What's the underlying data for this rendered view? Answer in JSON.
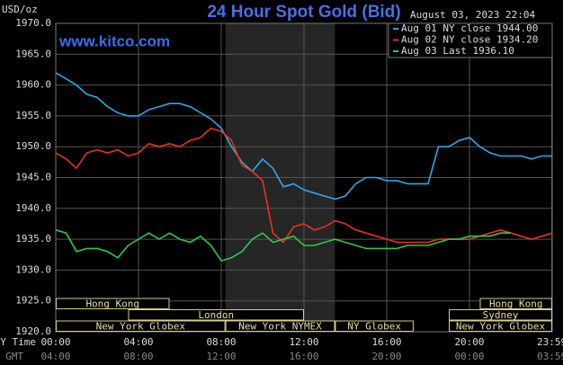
{
  "chart_data": {
    "type": "line",
    "title": "24 Hour Spot Gold (Bid)",
    "y_label": "USD/oz",
    "timestamp": "August 03, 2023 22:04",
    "site": "www.kitco.com",
    "x_label": "NY Time",
    "x2_label": "GMT",
    "xlim": [
      0,
      24
    ],
    "ylim": [
      1920,
      1970
    ],
    "yticks": [
      {
        "value": 1920,
        "label": "1920.0"
      },
      {
        "value": 1925,
        "label": "1925.0"
      },
      {
        "value": 1930,
        "label": "1930.0"
      },
      {
        "value": 1935,
        "label": "1935.0"
      },
      {
        "value": 1940,
        "label": "1940.0"
      },
      {
        "value": 1945,
        "label": "1945.0"
      },
      {
        "value": 1950,
        "label": "1950.0"
      },
      {
        "value": 1955,
        "label": "1955.0"
      },
      {
        "value": 1960,
        "label": "1960.0"
      },
      {
        "value": 1965,
        "label": "1965.0"
      },
      {
        "value": 1970,
        "label": "1970.0"
      }
    ],
    "xticks": [
      {
        "value": 0,
        "label": "00:00"
      },
      {
        "value": 4,
        "label": "04:00"
      },
      {
        "value": 8,
        "label": "08:00"
      },
      {
        "value": 12,
        "label": "12:00"
      },
      {
        "value": 16,
        "label": "16:00"
      },
      {
        "value": 20,
        "label": "20:00"
      },
      {
        "value": 23.98,
        "label": "23:59"
      }
    ],
    "gmt_labels": [
      "04:00",
      "08:00",
      "12:00",
      "16:00",
      "20:00",
      "00:00",
      "03:59"
    ],
    "grid": true,
    "sessions": [
      {
        "label": "Hong Kong",
        "start": 0,
        "end": 5.5
      },
      {
        "label": "Hong Kong",
        "start": 20.5,
        "end": 24
      },
      {
        "label": "London",
        "start": 3.5,
        "end": 12
      },
      {
        "label": "Sydney",
        "start": 19,
        "end": 24
      },
      {
        "label": "New York Globex",
        "start": 0,
        "end": 8.2
      },
      {
        "label": "New York NYMEX",
        "start": 8.2,
        "end": 13.5
      },
      {
        "label": "NY Globex",
        "start": 13.5,
        "end": 17.3
      },
      {
        "label": "New York Globex",
        "start": 19,
        "end": 24
      }
    ],
    "x": [
      0,
      0.5,
      1,
      1.5,
      2,
      2.5,
      3,
      3.5,
      4,
      4.5,
      5,
      5.5,
      6,
      6.5,
      7,
      7.5,
      8,
      8.5,
      9,
      9.5,
      10,
      10.5,
      11,
      11.5,
      12,
      12.5,
      13,
      13.5,
      14,
      14.5,
      15,
      15.5,
      16,
      16.5,
      17,
      17.5,
      18,
      18.5,
      19,
      19.5,
      20,
      20.5,
      21,
      21.5,
      22,
      22.5,
      23,
      23.5,
      24
    ],
    "series": [
      {
        "name": "Aug 01 NY close 1944.00",
        "color": "#2fa8e8",
        "values": [
          1962,
          1961,
          1960,
          1958.5,
          1958,
          1956.5,
          1955.5,
          1955,
          1955,
          1956,
          1956.5,
          1957,
          1957,
          1956.5,
          1955.5,
          1954.5,
          1953,
          1950,
          1947.5,
          1946,
          1948,
          1946.5,
          1943.5,
          1944,
          1943,
          1942.5,
          1942,
          1941.5,
          1942,
          1944,
          1945,
          1945,
          1944.5,
          1944.5,
          1944,
          1944,
          1944,
          1950,
          1950,
          1951,
          1951.5,
          1950,
          1949,
          1948.5,
          1948.5,
          1948.5,
          1948,
          1948.5,
          1948.5
        ]
      },
      {
        "name": "Aug 02 NY close 1934.20",
        "color": "#e8321e",
        "values": [
          1949,
          1948,
          1946.5,
          1949,
          1949.5,
          1949,
          1949.5,
          1948.5,
          1949,
          1950.5,
          1950,
          1950.5,
          1950,
          1951,
          1951.5,
          1953,
          1952.5,
          1951,
          1947,
          1946,
          1944.5,
          1936,
          1934.5,
          1937,
          1937.5,
          1936.5,
          1937,
          1938,
          1937.5,
          1936.5,
          1936,
          1935.5,
          1935,
          1934.5,
          1934.5,
          1934.5,
          1934.5,
          1935,
          1935,
          1935,
          1935,
          1935.5,
          1936,
          1936.5,
          1936,
          1935.5,
          1935,
          1935.5,
          1936
        ]
      },
      {
        "name": "Aug 03 Last 1936.10",
        "color": "#2ec84a",
        "values": [
          1936.5,
          1936,
          1933,
          1933.5,
          1933.5,
          1933,
          1932,
          1934,
          1935,
          1936,
          1935,
          1936,
          1935,
          1934.5,
          1935.5,
          1934,
          1931.5,
          1932,
          1933,
          1935,
          1936,
          1934.5,
          1935,
          1935.5,
          1934,
          1934,
          1934.5,
          1935,
          1934.5,
          1934,
          1933.5,
          1933.5,
          1933.5,
          1933.5,
          1934,
          1934,
          1934,
          1934.5,
          1935,
          1935,
          1935.5,
          1935.5,
          1935.5,
          1936,
          1936,
          null,
          null,
          null,
          null
        ]
      }
    ]
  }
}
